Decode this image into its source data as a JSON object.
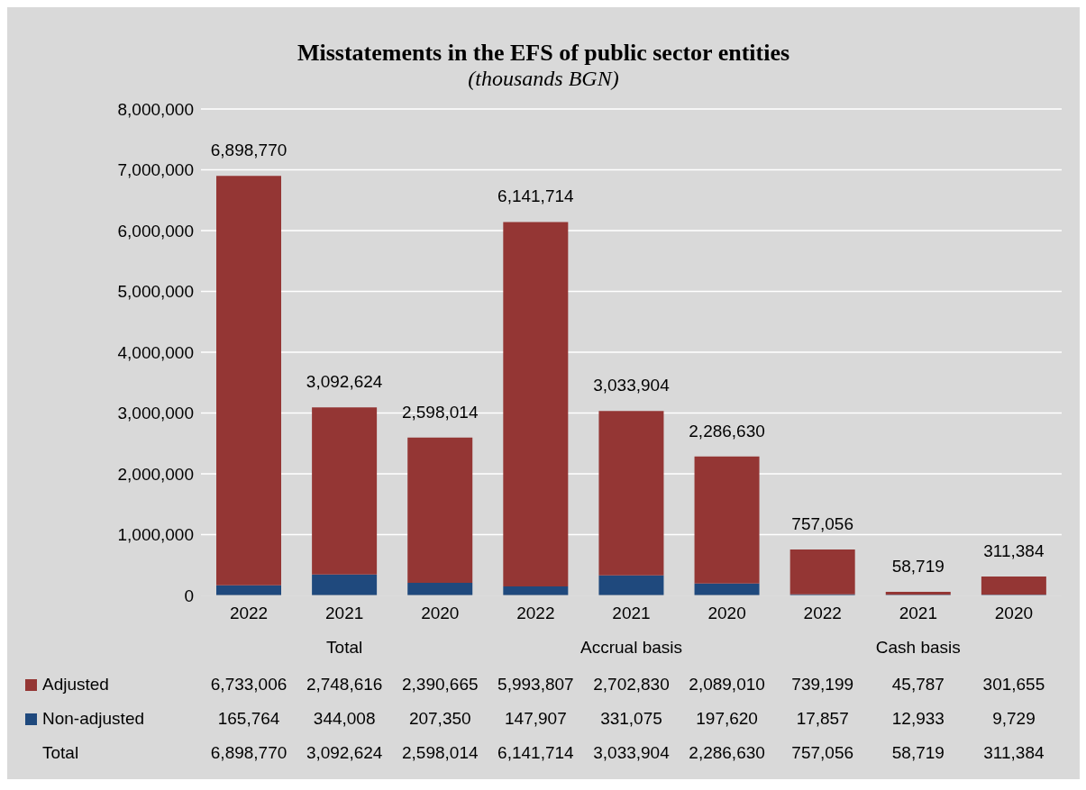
{
  "chart_data": {
    "type": "bar",
    "title": "Misstatements in the EFS of public sector entities",
    "subtitle": "(thousands BGN)",
    "categories": [
      "2022",
      "2021",
      "2020",
      "2022",
      "2021",
      "2020",
      "2022",
      "2021",
      "2020"
    ],
    "annotations": [
      "Total",
      "Accrual basis",
      "Cash basis",
      "Total"
    ],
    "stacked": true,
    "series": [
      {
        "name": "Non-adjusted",
        "color": "#1f497d",
        "values": [
          165764,
          344008,
          207350,
          147907,
          331075,
          197620,
          17857,
          12933,
          9729
        ],
        "value_labels": [
          "165,764",
          "344,008",
          "207,350",
          "147,907",
          "331,075",
          "197,620",
          "17,857",
          "12,933",
          "9,729"
        ]
      },
      {
        "name": "Adjusted",
        "color": "#943634",
        "values": [
          6733006,
          2748616,
          2390665,
          5993807,
          2702830,
          2089010,
          739199,
          45787,
          301655
        ],
        "value_labels": [
          "6,733,006",
          "2,748,616",
          "2,390,665",
          "5,993,807",
          "2,702,830",
          "2,089,010",
          "739,199",
          "45,787",
          "301,655"
        ]
      }
    ],
    "totals": [
      "6,898,770",
      "3,092,624",
      "2,598,014",
      "6,141,714",
      "3,033,904",
      "2,286,630",
      "757,056",
      "58,719",
      "311,384"
    ],
    "ylim": [
      0,
      8000000
    ],
    "yticks": [
      {
        "value": 0,
        "label": "0"
      },
      {
        "value": 1000000,
        "label": "1,000,000"
      },
      {
        "value": 2000000,
        "label": "2,000,000"
      },
      {
        "value": 3000000,
        "label": "3,000,000"
      },
      {
        "value": 4000000,
        "label": "4,000,000"
      },
      {
        "value": 5000000,
        "label": "5,000,000"
      },
      {
        "value": 6000000,
        "label": "6,000,000"
      },
      {
        "value": 7000000,
        "label": "7,000,000"
      },
      {
        "value": 8000000,
        "label": "8,000,000"
      }
    ],
    "grid": "y",
    "legend": "bottom"
  }
}
